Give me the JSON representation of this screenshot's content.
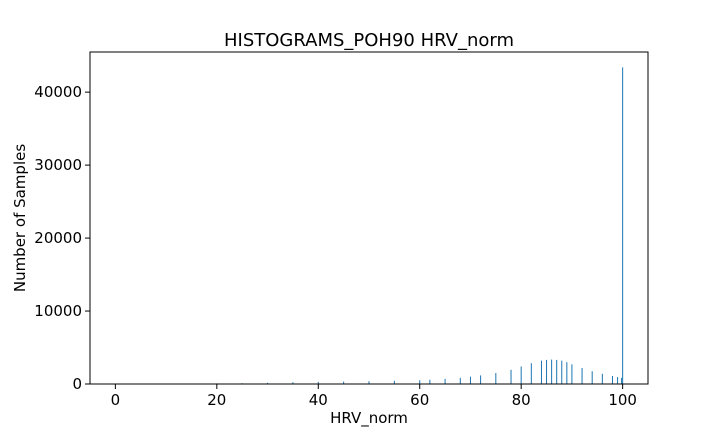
{
  "chart_data": {
    "type": "bar",
    "title": "HISTOGRAMS_POH90 HRV_norm",
    "xlabel": "HRV_norm",
    "ylabel": "Number of Samples",
    "xlim": [
      -5,
      105
    ],
    "ylim": [
      0,
      45500
    ],
    "xticks": [
      0,
      20,
      40,
      60,
      80,
      100
    ],
    "yticks": [
      0,
      10000,
      20000,
      30000,
      40000
    ],
    "grid": false,
    "color": "#1f77b4",
    "bin_width": 0.2,
    "x": [
      0,
      10,
      20,
      25,
      30,
      35,
      40,
      45,
      50,
      55,
      60,
      62,
      65,
      68,
      70,
      72,
      75,
      78,
      80,
      82,
      84,
      85,
      86,
      87,
      88,
      89,
      90,
      92,
      94,
      96,
      98,
      99,
      99.8,
      100
    ],
    "values": [
      20,
      40,
      80,
      110,
      170,
      240,
      290,
      330,
      380,
      440,
      520,
      580,
      700,
      850,
      1000,
      1180,
      1500,
      1950,
      2400,
      2850,
      3200,
      3300,
      3350,
      3300,
      3200,
      3000,
      2700,
      2200,
      1750,
      1400,
      1100,
      950,
      850,
      43400
    ]
  }
}
